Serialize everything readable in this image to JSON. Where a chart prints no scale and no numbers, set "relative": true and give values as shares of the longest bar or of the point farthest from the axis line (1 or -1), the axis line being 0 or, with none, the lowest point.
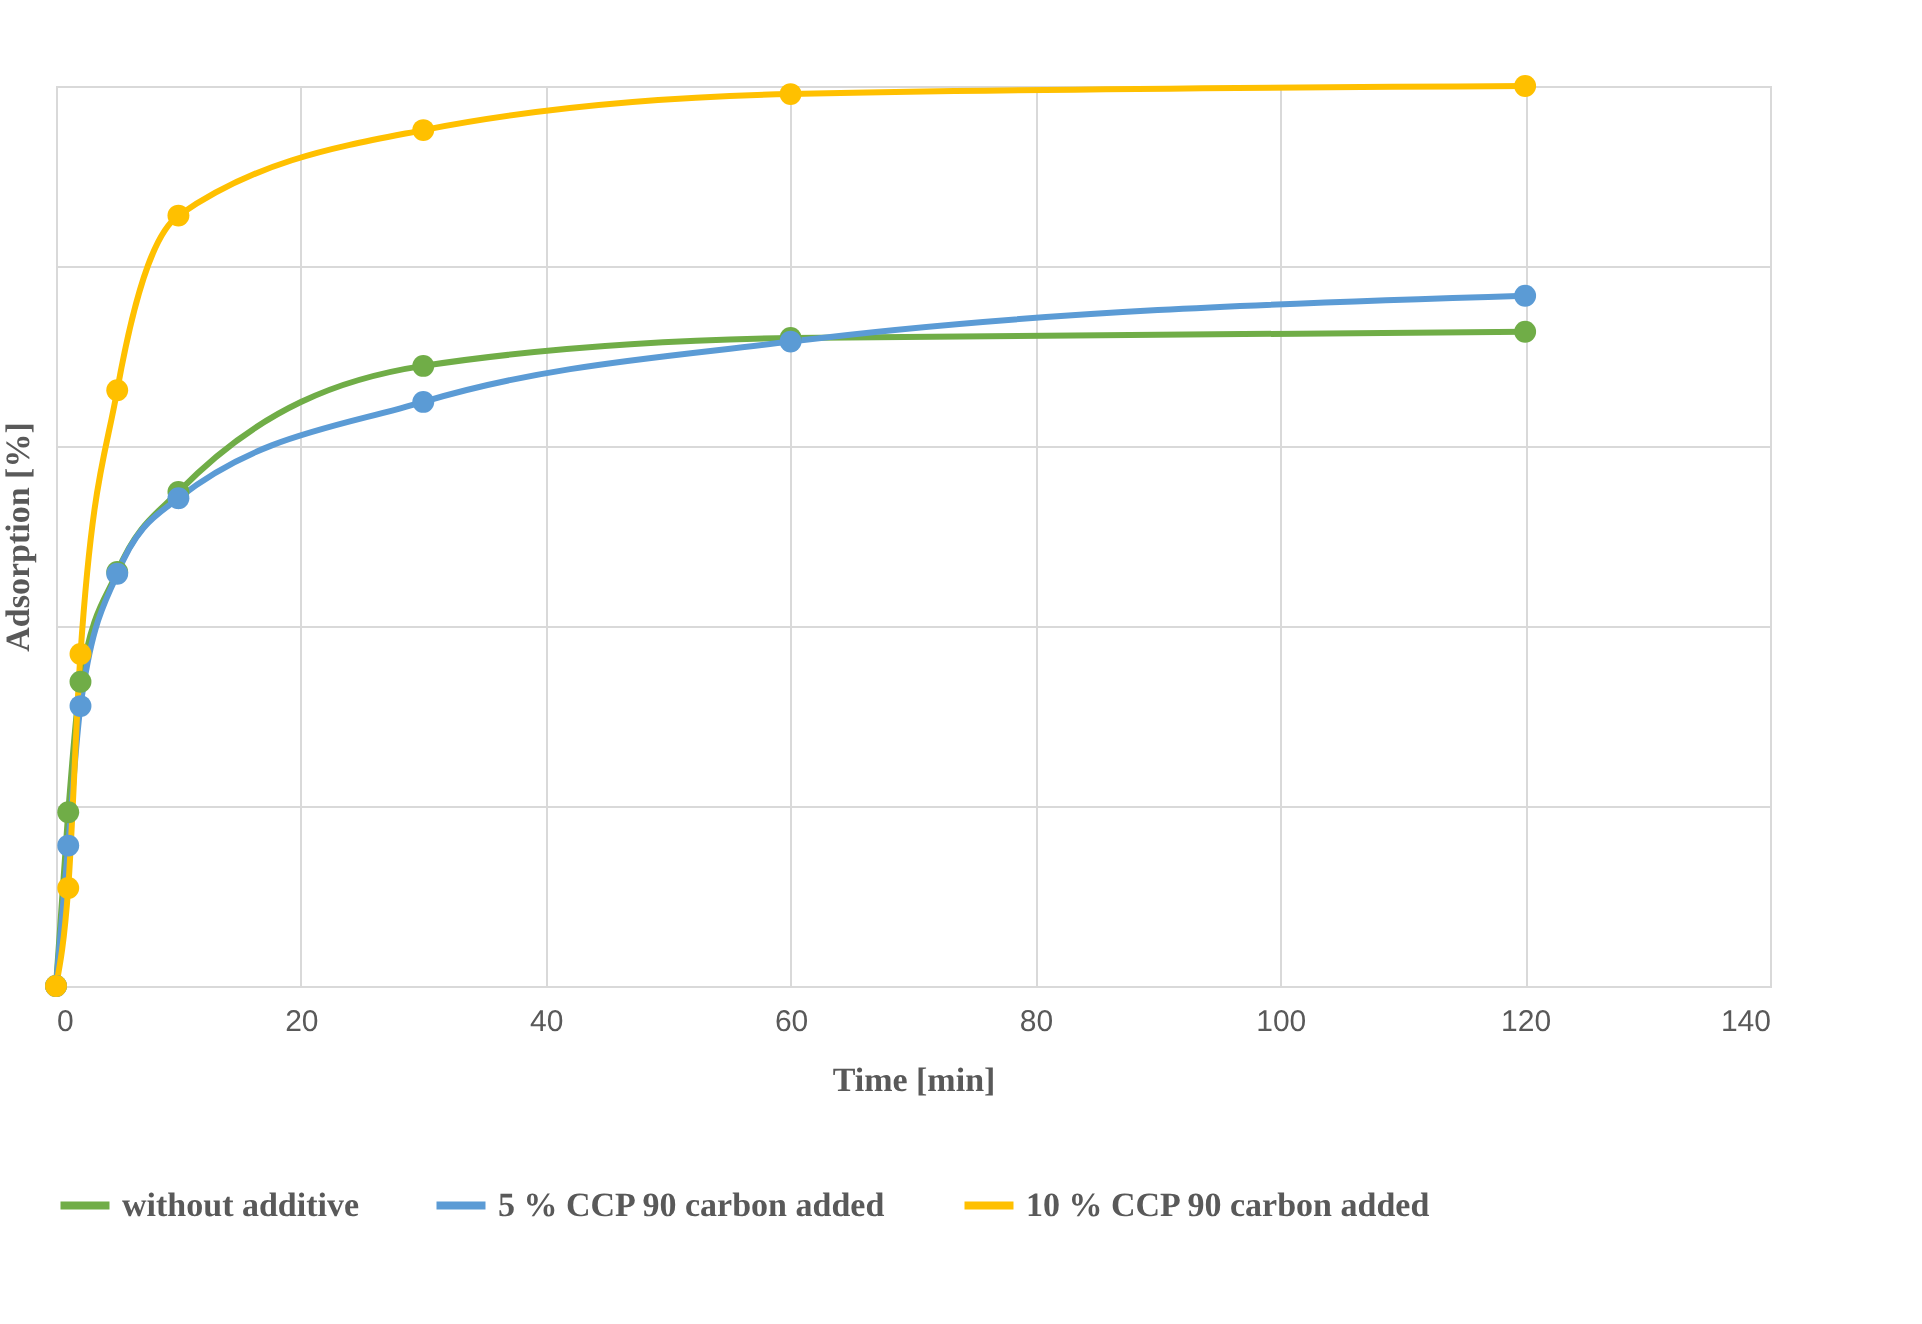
{
  "chart_data": {
    "type": "line",
    "xlabel": "Time [min]",
    "ylabel": "Adsorption [%]",
    "relative": true,
    "x": [
      0,
      1,
      2,
      5,
      10,
      30,
      60,
      120
    ],
    "xlim": [
      0,
      140
    ],
    "xticks": [
      0,
      20,
      40,
      60,
      80,
      100,
      120,
      140
    ],
    "grid": true,
    "legend": "bottom",
    "marker": "circle",
    "series": [
      {
        "name": "without additive",
        "color": "#70ad47",
        "values": [
          0,
          0.193,
          0.338,
          0.46,
          0.549,
          0.689,
          0.72,
          0.727
        ]
      },
      {
        "name": "5 % CCP 90 carbon added",
        "color": "#5b9bd5",
        "values": [
          0,
          0.156,
          0.311,
          0.458,
          0.542,
          0.649,
          0.716,
          0.767
        ]
      },
      {
        "name": "10 % CCP 90 carbon added",
        "color": "#ffc000",
        "values": [
          0,
          0.109,
          0.369,
          0.662,
          0.856,
          0.951,
          0.991,
          1
        ]
      }
    ]
  }
}
